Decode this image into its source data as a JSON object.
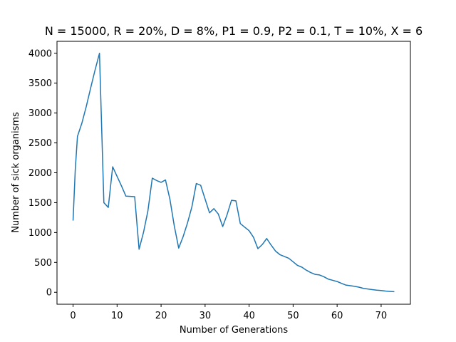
{
  "chart_data": {
    "type": "line",
    "title": "N = 15000, R = 20%, D = 8%, P1 = 0.9, P2 = 0.1, T = 10%, X = 6",
    "xlabel": "Number of Generations",
    "ylabel": "Number of sick organisms",
    "xlim": [
      -3.65,
      76.65
    ],
    "ylim": [
      -200,
      4200
    ],
    "xticks": [
      0,
      10,
      20,
      30,
      40,
      50,
      60,
      70
    ],
    "yticks": [
      0,
      500,
      1000,
      1500,
      2000,
      2500,
      3000,
      3500,
      4000
    ],
    "grid": false,
    "series_color": "#1f77b4",
    "x": [
      0,
      0.5,
      1,
      2,
      3,
      4,
      5,
      6,
      7,
      8,
      9,
      10,
      11,
      12,
      13,
      14,
      15,
      16,
      17,
      18,
      19,
      20,
      21,
      22,
      23,
      24,
      25,
      26,
      27,
      28,
      29,
      30,
      31,
      32,
      33,
      34,
      35,
      36,
      37,
      38,
      39,
      40,
      41,
      42,
      43,
      44,
      45,
      46,
      47,
      48,
      49,
      50,
      51,
      52,
      53,
      54,
      55,
      56,
      57,
      58,
      59,
      60,
      61,
      62,
      63,
      64,
      65,
      66,
      67,
      68,
      69,
      70,
      71,
      72,
      73
    ],
    "y": [
      1200,
      2050,
      2610,
      2830,
      3110,
      3420,
      3720,
      4000,
      1500,
      1420,
      2100,
      1940,
      1780,
      1610,
      1605,
      1600,
      720,
      1000,
      1360,
      1910,
      1870,
      1840,
      1880,
      1560,
      1110,
      740,
      930,
      1160,
      1430,
      1820,
      1790,
      1560,
      1330,
      1400,
      1310,
      1100,
      1300,
      1540,
      1530,
      1150,
      1090,
      1030,
      920,
      730,
      800,
      900,
      790,
      690,
      630,
      600,
      570,
      510,
      450,
      420,
      370,
      330,
      300,
      290,
      260,
      220,
      200,
      180,
      150,
      120,
      110,
      100,
      85,
      65,
      55,
      45,
      35,
      30,
      20,
      15,
      10
    ]
  }
}
